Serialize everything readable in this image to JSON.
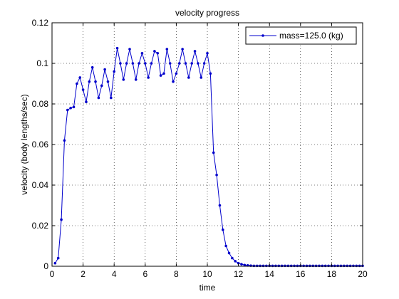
{
  "chart_data": {
    "type": "line",
    "title": "velocity progress",
    "xlabel": "time",
    "ylabel": "velocity (body lengths/sec)",
    "xlim": [
      0,
      20
    ],
    "ylim": [
      0,
      0.12
    ],
    "xticks": [
      0,
      2,
      4,
      6,
      8,
      10,
      12,
      14,
      16,
      18,
      20
    ],
    "yticks": [
      0,
      0.02,
      0.04,
      0.06,
      0.08,
      0.1,
      0.12
    ],
    "xtick_labels": [
      "0",
      "2",
      "4",
      "6",
      "8",
      "10",
      "12",
      "14",
      "16",
      "18",
      "20"
    ],
    "ytick_labels": [
      "0",
      "0.02",
      "0.04",
      "0.06",
      "0.08",
      "0.1",
      "0.12"
    ],
    "grid": true,
    "legend_position": "top-right",
    "series": [
      {
        "name": "mass=125.0 (kg)",
        "color": "#0000cc",
        "marker": "dot",
        "x": [
          0.2,
          0.4,
          0.6,
          0.8,
          1.0,
          1.2,
          1.4,
          1.6,
          1.8,
          2.0,
          2.2,
          2.4,
          2.6,
          2.8,
          3.0,
          3.2,
          3.4,
          3.6,
          3.8,
          4.0,
          4.2,
          4.4,
          4.6,
          4.8,
          5.0,
          5.2,
          5.4,
          5.6,
          5.8,
          6.0,
          6.2,
          6.4,
          6.6,
          6.8,
          7.0,
          7.2,
          7.4,
          7.6,
          7.8,
          8.0,
          8.2,
          8.4,
          8.6,
          8.8,
          9.0,
          9.2,
          9.4,
          9.6,
          9.8,
          10.0,
          10.2,
          10.4,
          10.6,
          10.8,
          11.0,
          11.2,
          11.4,
          11.6,
          11.8,
          12.0,
          12.2,
          12.4,
          12.6,
          12.8,
          13.0,
          13.2,
          13.4,
          13.6,
          13.8,
          14.0,
          14.2,
          14.4,
          14.6,
          14.8,
          15.0,
          15.2,
          15.4,
          15.6,
          15.8,
          16.0,
          16.2,
          16.4,
          16.6,
          16.8,
          17.0,
          17.2,
          17.4,
          17.6,
          17.8,
          18.0,
          18.2,
          18.4,
          18.6,
          18.8,
          19.0,
          19.2,
          19.4,
          19.6,
          19.8,
          20.0
        ],
        "y": [
          0.0015,
          0.004,
          0.023,
          0.062,
          0.077,
          0.078,
          0.0785,
          0.09,
          0.093,
          0.087,
          0.081,
          0.091,
          0.098,
          0.091,
          0.083,
          0.089,
          0.097,
          0.091,
          0.083,
          0.096,
          0.1075,
          0.1,
          0.092,
          0.1,
          0.107,
          0.1,
          0.092,
          0.1,
          0.105,
          0.1,
          0.093,
          0.1,
          0.106,
          0.105,
          0.094,
          0.095,
          0.107,
          0.1,
          0.091,
          0.095,
          0.1,
          0.107,
          0.1,
          0.093,
          0.1,
          0.106,
          0.1,
          0.093,
          0.1,
          0.105,
          0.095,
          0.056,
          0.045,
          0.03,
          0.018,
          0.01,
          0.0065,
          0.004,
          0.0025,
          0.0015,
          0.001,
          0.0006,
          0.0004,
          0.0003,
          0.0002,
          0.0002,
          0.0002,
          0.0002,
          0.0002,
          0.0002,
          0.0002,
          0.0002,
          0.0002,
          0.0002,
          0.0002,
          0.0002,
          0.0002,
          0.0002,
          0.0002,
          0.0002,
          0.0002,
          0.0002,
          0.0002,
          0.0002,
          0.0002,
          0.0002,
          0.0002,
          0.0002,
          0.0002,
          0.0002,
          0.0002,
          0.0002,
          0.0002,
          0.0002,
          0.0002,
          0.0002,
          0.0002,
          0.0002,
          0.0002,
          0.0002
        ]
      }
    ]
  }
}
